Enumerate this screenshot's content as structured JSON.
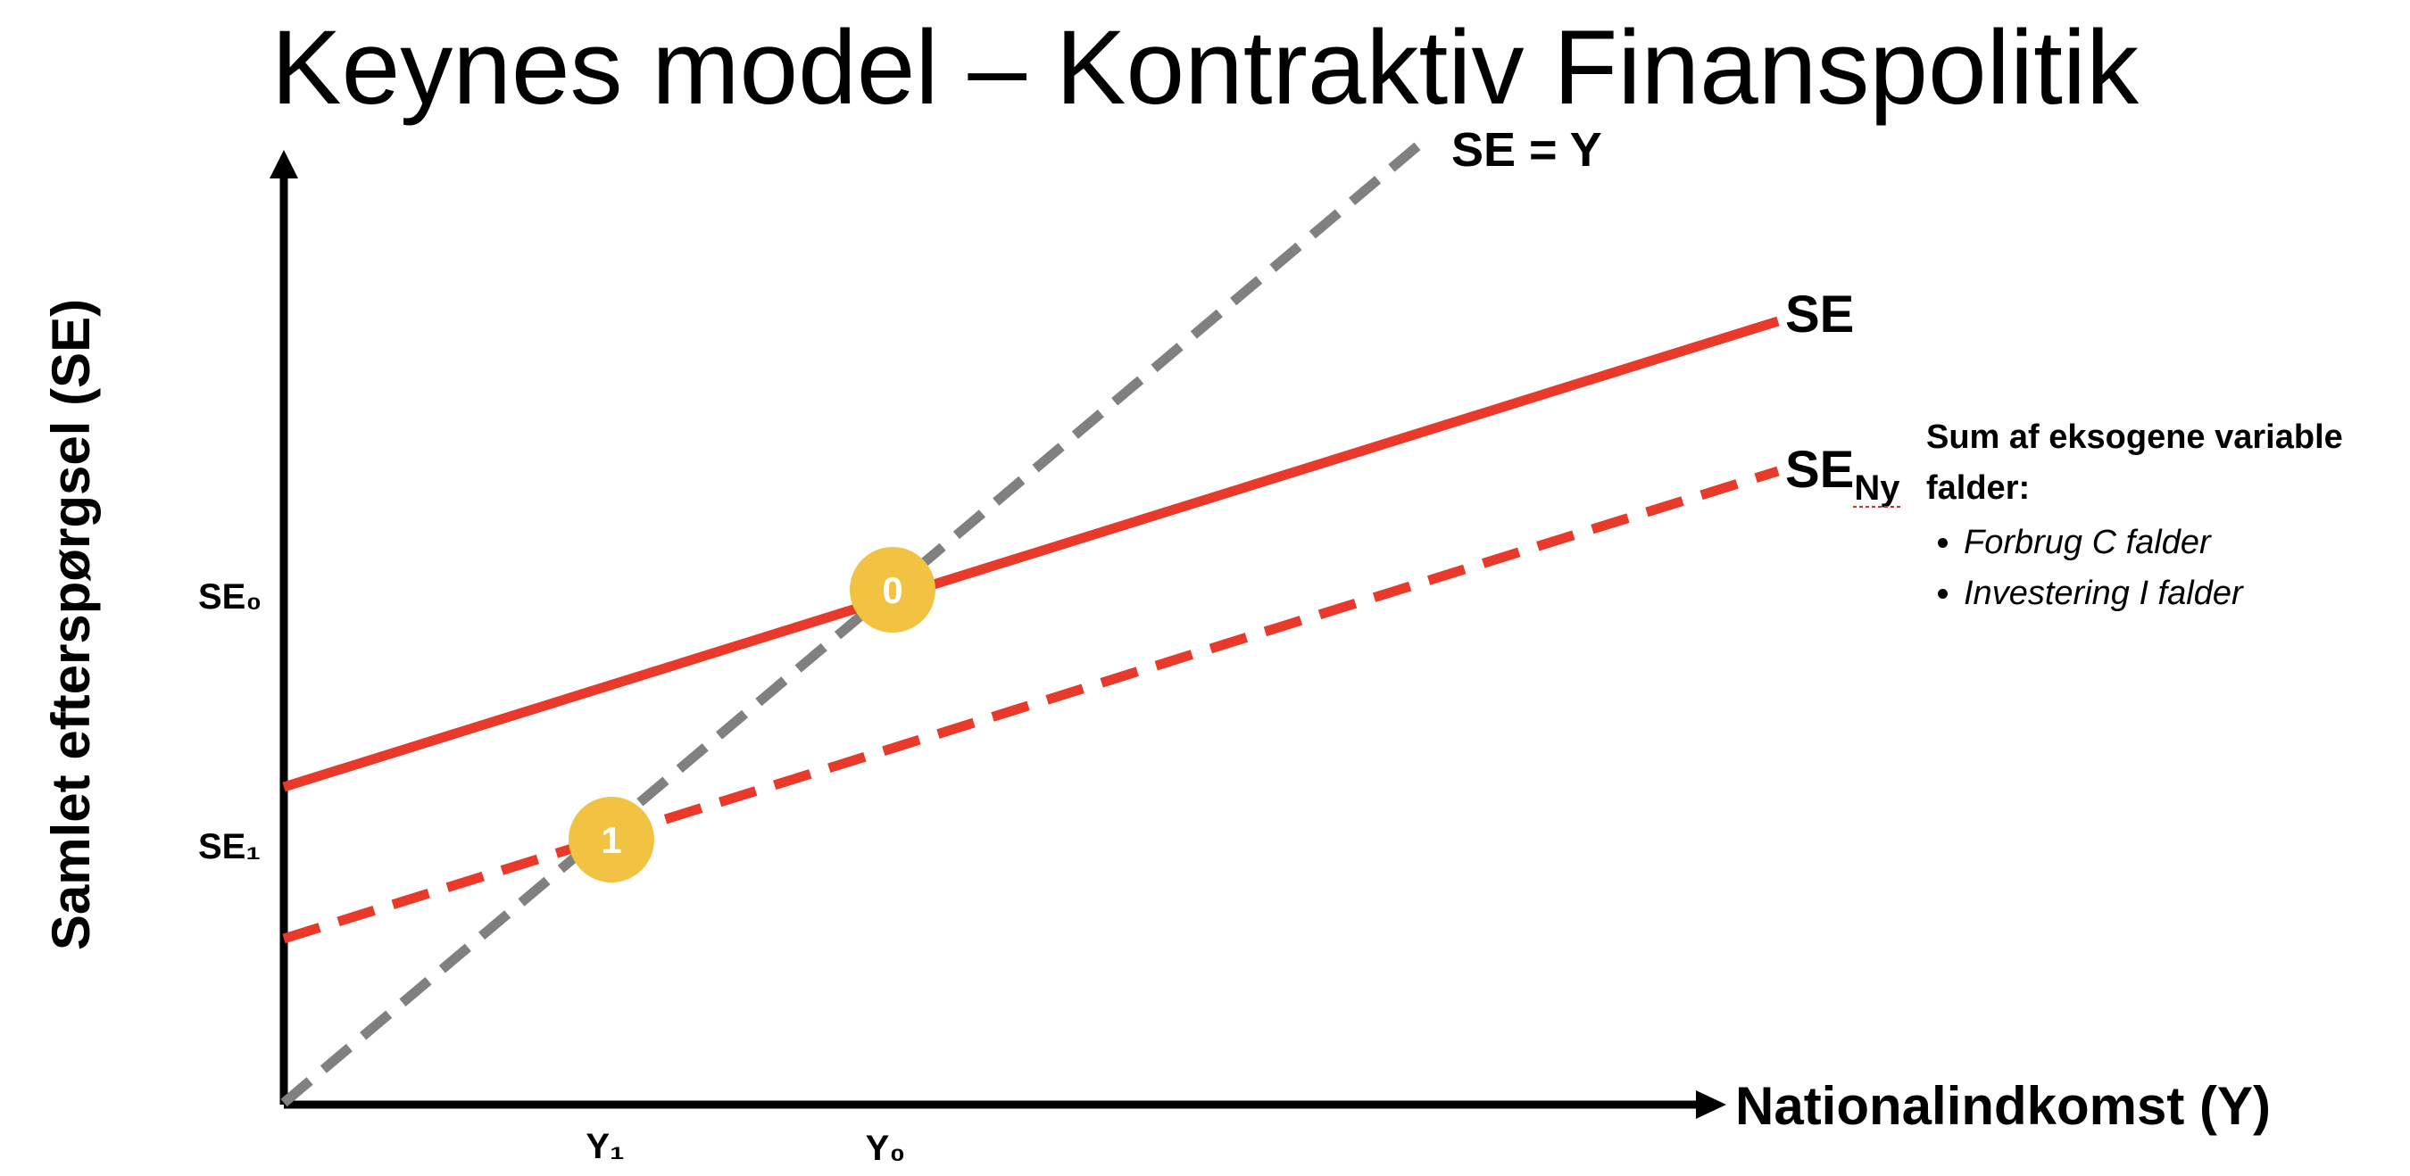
{
  "title": "Keynes model – Kontraktiv Finanspolitik",
  "axes": {
    "y_label": "Samlet efterspørgsel (SE)",
    "x_label": "Nationalindkomst (Y)"
  },
  "lines": {
    "diagonal_label": "SE = Y",
    "se_label": "SE",
    "se_ny_label": "SE",
    "se_ny_subscript": "Ny"
  },
  "ticks": {
    "y0_tick": "SE₀",
    "y1_tick": "SE₁",
    "x0_tick": "Y₀",
    "x1_tick": "Y₁"
  },
  "points": [
    {
      "label": "0",
      "y_value_label": "SE₀",
      "x_value_label": "Y₀"
    },
    {
      "label": "1",
      "y_value_label": "SE₁",
      "x_value_label": "Y₁"
    }
  ],
  "note": {
    "heading": "Sum af eksogene variable falder:",
    "items": [
      "Forbrug C falder",
      "Investering I falder"
    ]
  },
  "colors": {
    "axis": "#000000",
    "se_line": "#e8392b",
    "diagonal": "#808080",
    "point_fill": "#f2c342",
    "point_text": "#ffffff"
  }
}
